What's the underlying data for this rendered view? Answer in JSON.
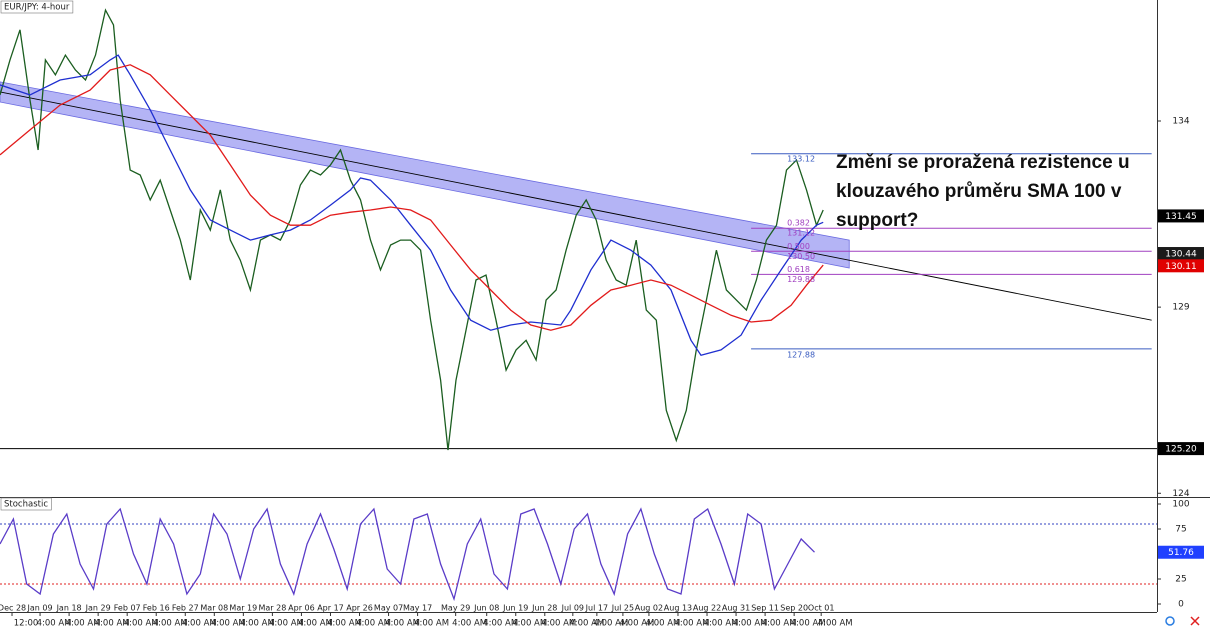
{
  "chart_data": [
    {
      "type": "line",
      "title": "EUR/JPY: 4-hour",
      "xlim": [
        0,
        1733
      ],
      "ylim": [
        123.9,
        137.25
      ],
      "yticks": [
        124,
        129,
        134
      ],
      "xticks": [
        {
          "value": 18,
          "label": "Dec 28"
        },
        {
          "value": 60,
          "label": "Jan 09"
        },
        {
          "value": 103.5,
          "label": "Jan 18"
        },
        {
          "value": 147,
          "label": "Jan 29"
        },
        {
          "value": 190.5,
          "label": "Feb 07"
        },
        {
          "value": 234,
          "label": "Feb 16"
        },
        {
          "value": 277.5,
          "label": "Feb 27"
        },
        {
          "value": 321,
          "label": "Mar 08"
        },
        {
          "value": 364.5,
          "label": "Mar 19"
        },
        {
          "value": 408,
          "label": "Mar 28"
        },
        {
          "value": 451.5,
          "label": "Apr 06"
        },
        {
          "value": 495,
          "label": "Apr 17"
        },
        {
          "value": 538.5,
          "label": "Apr 26"
        },
        {
          "value": 582,
          "label": "May 07"
        },
        {
          "value": 625.5,
          "label": "May 17"
        },
        {
          "value": 682.5,
          "label": "May 29"
        },
        {
          "value": 729,
          "label": "Jun 08"
        },
        {
          "value": 772.5,
          "label": "Jun 19"
        },
        {
          "value": 816,
          "label": "Jun 28"
        },
        {
          "value": 858,
          "label": "Jul 09"
        },
        {
          "value": 894,
          "label": "Jul 17"
        },
        {
          "value": 933,
          "label": "Jul 25"
        },
        {
          "value": 972,
          "label": "Aug 02"
        },
        {
          "value": 1015.5,
          "label": "Aug 13"
        },
        {
          "value": 1059,
          "label": "Aug 22"
        },
        {
          "value": 1102.5,
          "label": "Aug 31"
        },
        {
          "value": 1146,
          "label": "Sep 11"
        },
        {
          "value": 1189.5,
          "label": "Sep 20"
        },
        {
          "value": 1230,
          "label": "Oct 01"
        }
      ],
      "time_labels": [
        "12:00",
        "4:00 AM",
        "4:00 AM",
        "4:00 AM",
        "4:00 AM",
        "4:00 AM",
        "4:00 AM",
        "4:00 AM",
        "4:00 AM",
        "4:00 AM",
        "4:00 AM",
        "4:00 AM",
        "4:00 AM",
        "4:00 AM",
        "4:00 AM",
        "4:00 AM",
        "4:00 AM",
        "4:00 AM",
        "4:00 AM",
        "4:00 AM",
        "4:00 AM",
        "4:00 AM",
        "4:00 AM",
        "4:00 AM",
        "4:00 AM",
        "4:00 AM",
        "4:00 AM",
        "4:00 AM",
        "4:00 AM"
      ],
      "series": [
        {
          "color": "#1b5e20",
          "x": [
            0,
            15,
            30,
            45,
            57,
            68,
            83,
            98,
            113,
            128,
            143,
            158,
            170,
            180,
            195,
            210,
            225,
            240,
            255,
            270,
            285,
            300,
            315,
            330,
            345,
            360,
            375,
            390,
            405,
            420,
            435,
            450,
            465,
            480,
            495,
            510,
            525,
            540,
            555,
            570,
            585,
            600,
            615,
            630,
            645,
            660,
            671,
            683,
            698,
            713,
            728,
            743,
            758,
            773,
            788,
            803,
            818,
            833,
            848,
            863,
            878,
            893,
            908,
            923,
            938,
            953,
            968,
            983,
            998,
            1013,
            1028,
            1043,
            1058,
            1073,
            1088,
            1103,
            1118,
            1133,
            1148,
            1163,
            1178,
            1193,
            1208,
            1223,
            1233
          ],
          "values": [
            134.7,
            135.64,
            136.45,
            134.56,
            133.22,
            135.64,
            135.24,
            135.77,
            135.37,
            135.1,
            135.77,
            136.98,
            136.58,
            134.56,
            132.68,
            132.55,
            131.88,
            132.41,
            131.61,
            130.8,
            129.73,
            131.61,
            131.07,
            132.15,
            130.8,
            130.26,
            129.46,
            130.8,
            130.94,
            130.8,
            131.34,
            132.28,
            132.68,
            132.55,
            132.82,
            133.22,
            132.41,
            131.88,
            130.8,
            130.0,
            130.67,
            130.8,
            130.8,
            130.53,
            128.65,
            127.04,
            125.16,
            127.04,
            128.38,
            129.73,
            129.86,
            128.65,
            127.31,
            127.85,
            128.11,
            127.58,
            129.19,
            129.46,
            130.53,
            131.47,
            131.88,
            131.34,
            130.26,
            129.73,
            129.59,
            130.8,
            128.92,
            128.65,
            126.23,
            125.42,
            126.23,
            127.85,
            129.19,
            130.53,
            129.46,
            129.19,
            128.92,
            129.73,
            130.8,
            131.2,
            132.68,
            132.95,
            132.15,
            131.2,
            131.61
          ]
        },
        {
          "color": "#1f2fd0",
          "x": [
            0,
            45,
            90,
            135,
            165,
            177,
            195,
            225,
            255,
            285,
            315,
            345,
            375,
            405,
            435,
            465,
            495,
            525,
            540,
            555,
            585,
            615,
            645,
            675,
            705,
            735,
            765,
            795,
            840,
            855,
            885,
            915,
            945,
            975,
            1005,
            1035,
            1050,
            1080,
            1110,
            1140,
            1170,
            1200,
            1223,
            1233
          ],
          "values": [
            134.97,
            134.7,
            135.1,
            135.24,
            135.64,
            135.77,
            135.24,
            134.3,
            133.22,
            132.15,
            131.34,
            131.07,
            130.8,
            130.94,
            131.07,
            131.34,
            131.74,
            132.15,
            132.47,
            132.41,
            131.88,
            131.2,
            130.53,
            129.46,
            128.65,
            128.38,
            128.52,
            128.6,
            128.52,
            128.92,
            130.0,
            130.8,
            130.53,
            130.13,
            129.46,
            128.11,
            127.71,
            127.85,
            128.25,
            129.19,
            130.0,
            130.8,
            131.2,
            131.28
          ]
        },
        {
          "color": "#e21b1b",
          "x": [
            0,
            45,
            90,
            135,
            165,
            195,
            225,
            255,
            285,
            315,
            345,
            375,
            405,
            435,
            465,
            495,
            525,
            555,
            585,
            615,
            645,
            675,
            705,
            735,
            765,
            795,
            825,
            855,
            885,
            915,
            945,
            975,
            1005,
            1035,
            1065,
            1095,
            1125,
            1155,
            1185,
            1208,
            1233
          ],
          "values": [
            133.09,
            133.76,
            134.43,
            134.83,
            135.37,
            135.51,
            135.24,
            134.7,
            134.16,
            133.62,
            132.82,
            132.01,
            131.47,
            131.2,
            131.2,
            131.47,
            131.55,
            131.61,
            131.69,
            131.61,
            131.34,
            130.67,
            130.0,
            129.46,
            128.92,
            128.52,
            128.38,
            128.52,
            129.05,
            129.46,
            129.59,
            129.73,
            129.59,
            129.32,
            129.05,
            128.78,
            128.6,
            128.65,
            129.05,
            129.59,
            130.13
          ]
        }
      ],
      "channel": {
        "x": [
          0,
          1272
        ],
        "upper": [
          135.05,
          130.8
        ],
        "lower": [
          134.51,
          130.05
        ],
        "color": "#8282ee"
      },
      "trendline": {
        "x": [
          0,
          1725
        ],
        "values": [
          134.78,
          128.65
        ],
        "color": "#000000"
      },
      "fibonacci": {
        "x": [
          1125,
          1725
        ],
        "levels": [
          {
            "price": 133.12,
            "color": "#3a5cc0"
          },
          {
            "ratio": 0.382,
            "price": 131.12,
            "color": "#a040c0"
          },
          {
            "ratio": {
              "value": 0.5,
              "label": "0.500"
            },
            "price": {
              "value": 130.5,
              "label": "130.50"
            },
            "color": "#a040c0"
          },
          {
            "ratio": 0.618,
            "price": 129.88,
            "color": "#a040c0"
          },
          {
            "price": 127.88,
            "color": "#3a5cc0"
          }
        ]
      },
      "horizontal_line": {
        "price": {
          "value": 125.2,
          "label": "125.20"
        },
        "color": "#000000"
      },
      "price_labels": [
        {
          "price": 131.45,
          "color": "#000000"
        },
        {
          "price": 130.44,
          "color": "#1a1a1a"
        },
        {
          "price": 130.11,
          "color": "#e00000"
        }
      ],
      "annotation": "Změní se proražená rezistence u klouzavého průměru SMA 100 v support?"
    },
    {
      "type": "line",
      "title": "Stochastic",
      "xlim": [
        0,
        1733
      ],
      "ylim": [
        -8,
        107
      ],
      "yticks": [
        0,
        25,
        75,
        100
      ],
      "levels": [
        {
          "value": 80,
          "color": "#3040c0"
        },
        {
          "value": 20,
          "color": "#e02020"
        }
      ],
      "series": [
        {
          "color": "#5a3cc8",
          "label_color": "#2040ff",
          "x": [
            0,
            20,
            40,
            60,
            80,
            100,
            120,
            140,
            160,
            180,
            200,
            220,
            240,
            260,
            280,
            300,
            320,
            340,
            360,
            380,
            400,
            420,
            440,
            460,
            480,
            500,
            520,
            540,
            560,
            580,
            600,
            620,
            640,
            660,
            680,
            700,
            720,
            740,
            760,
            780,
            800,
            820,
            840,
            860,
            880,
            900,
            920,
            940,
            960,
            980,
            1000,
            1020,
            1040,
            1060,
            1080,
            1100,
            1120,
            1140,
            1160,
            1180,
            1200,
            1220
          ],
          "values": [
            60,
            85,
            20,
            10,
            70,
            90,
            40,
            15,
            80,
            95,
            50,
            20,
            85,
            60,
            10,
            30,
            90,
            70,
            25,
            75,
            95,
            40,
            10,
            60,
            90,
            55,
            15,
            80,
            95,
            35,
            20,
            85,
            90,
            40,
            5,
            60,
            85,
            30,
            15,
            90,
            95,
            60,
            20,
            75,
            90,
            40,
            10,
            70,
            95,
            50,
            15,
            10,
            85,
            95,
            60,
            20,
            90,
            80,
            15,
            40,
            65,
            51.76
          ]
        }
      ]
    }
  ]
}
